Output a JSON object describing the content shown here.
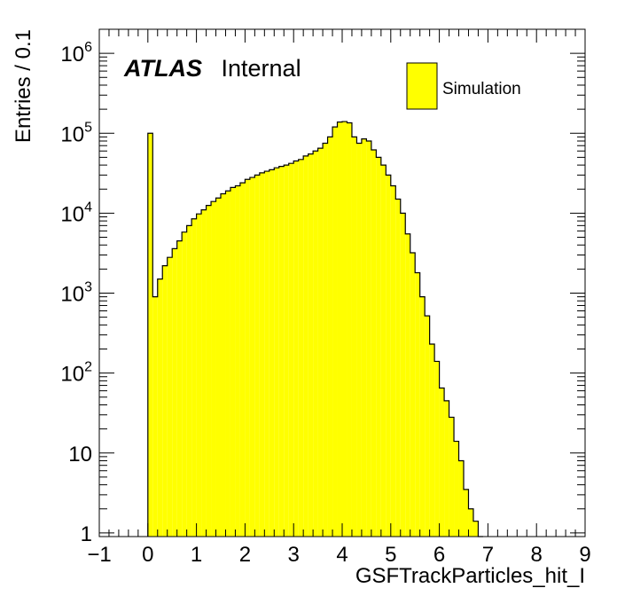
{
  "chart_data": {
    "type": "bar",
    "histogram": true,
    "xlabel": "GSFTrackParticles_hit_I",
    "ylabel": "Entries / 0.1",
    "xlim": [
      -1,
      9
    ],
    "ylim": [
      0.9,
      2000000
    ],
    "log_y": true,
    "bin_width": 0.1,
    "x_ticks": [
      "−1",
      "0",
      "1",
      "2",
      "3",
      "4",
      "5",
      "6",
      "7",
      "8",
      "9"
    ],
    "y_tick_values": [
      1,
      10,
      100,
      1000,
      10000,
      100000,
      1000000
    ],
    "y_ticks": [
      {
        "base": "1",
        "exp": ""
      },
      {
        "base": "10",
        "exp": ""
      },
      {
        "base": "10",
        "exp": "2"
      },
      {
        "base": "10",
        "exp": "3"
      },
      {
        "base": "10",
        "exp": "4"
      },
      {
        "base": "10",
        "exp": "5"
      },
      {
        "base": "10",
        "exp": "6"
      }
    ],
    "grid": false,
    "legend_position": "top-right",
    "fill_color": "#ffff00",
    "edge_color": "#000000",
    "series": [
      {
        "name": "Simulation",
        "bin_starts": [
          0.0,
          0.1,
          0.2,
          0.3,
          0.4,
          0.5,
          0.6,
          0.7,
          0.8,
          0.9,
          1.0,
          1.1,
          1.2,
          1.3,
          1.4,
          1.5,
          1.6,
          1.7,
          1.8,
          1.9,
          2.0,
          2.1,
          2.2,
          2.3,
          2.4,
          2.5,
          2.6,
          2.7,
          2.8,
          2.9,
          3.0,
          3.1,
          3.2,
          3.3,
          3.4,
          3.5,
          3.6,
          3.7,
          3.8,
          3.9,
          4.0,
          4.1,
          4.2,
          4.3,
          4.4,
          4.5,
          4.6,
          4.7,
          4.8,
          4.9,
          5.0,
          5.1,
          5.2,
          5.3,
          5.4,
          5.5,
          5.6,
          5.7,
          5.8,
          5.9,
          6.0,
          6.1,
          6.2,
          6.3,
          6.4,
          6.5,
          6.6,
          6.7,
          6.8
        ],
        "values": [
          100000,
          900,
          1500,
          2200,
          2800,
          3600,
          4500,
          5800,
          7000,
          8500,
          9800,
          11000,
          12500,
          14000,
          15500,
          17500,
          19000,
          21000,
          22000,
          24000,
          26500,
          28000,
          30000,
          32000,
          33500,
          35000,
          37000,
          38500,
          40000,
          42000,
          45000,
          47000,
          52000,
          55000,
          60000,
          65000,
          75000,
          90000,
          120000,
          138000,
          140000,
          135000,
          90000,
          75000,
          85000,
          80000,
          62000,
          50000,
          40000,
          30000,
          22000,
          15000,
          10000,
          5500,
          3200,
          1800,
          900,
          520,
          230,
          140,
          65,
          45,
          28,
          14,
          8,
          3.5,
          2,
          1.4,
          0
        ]
      }
    ],
    "annotations": {
      "experiment": "ATLAS",
      "status": "Internal"
    }
  }
}
